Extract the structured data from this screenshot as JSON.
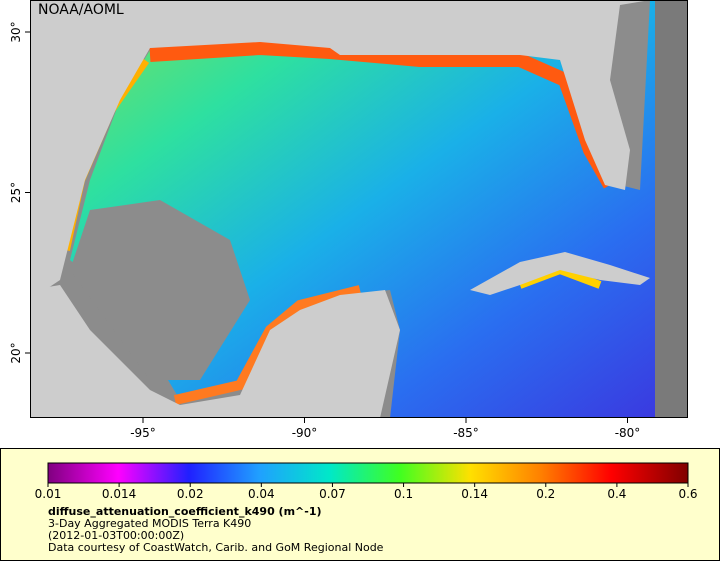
{
  "map": {
    "watermark": "NOAA/AOML",
    "x_ticks": [
      "-95°",
      "-90°",
      "-85°",
      "-80°"
    ],
    "y_ticks": [
      "30°",
      "25°",
      "20°"
    ],
    "colorbar": {
      "ticks": [
        "0.01",
        "0.014",
        "0.02",
        "0.04",
        "0.07",
        "0.1",
        "0.14",
        "0.2",
        "0.4",
        "0.6"
      ]
    },
    "legend": {
      "variable": "diffuse_attenuation_coefficient_k490 (m^-1)",
      "dataset": "3-Day Aggregated MODIS Terra K490",
      "time": "(2012-01-03T00:00:00Z)",
      "credit": "Data courtesy of CoastWatch, Carib. and GoM Regional Node"
    }
  }
}
